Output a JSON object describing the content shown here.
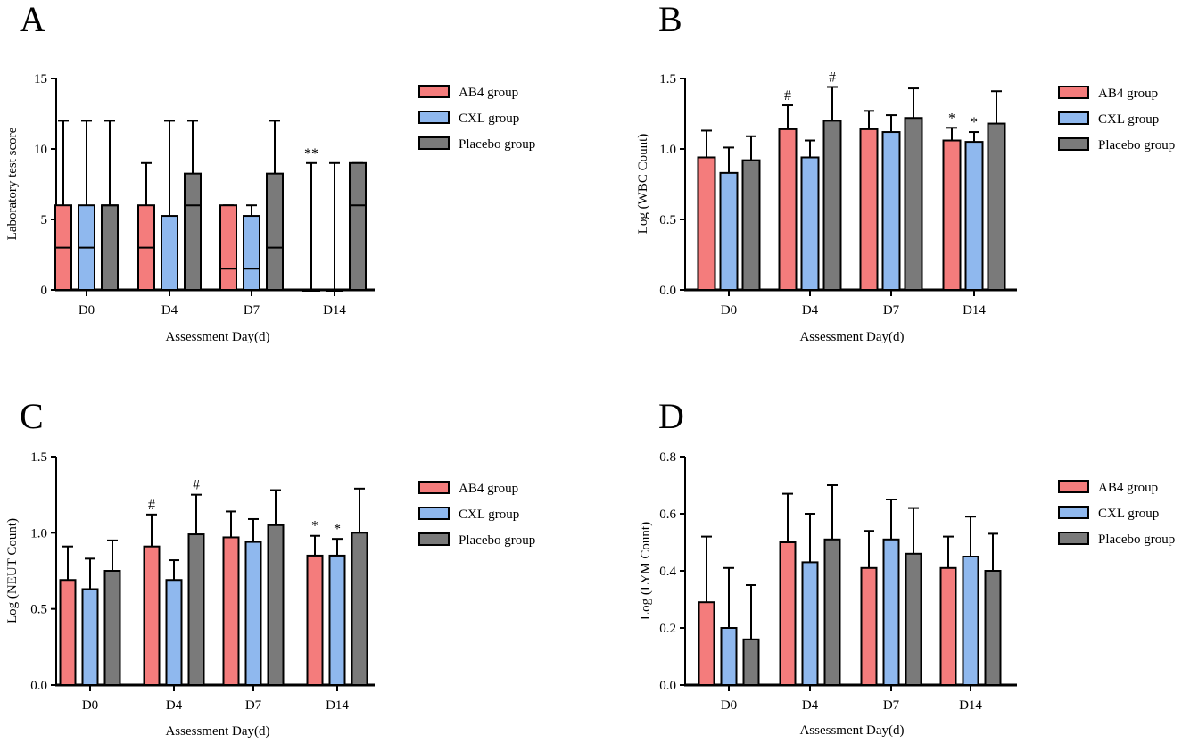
{
  "colors": {
    "AB4 group": "#F47C7C",
    "CXL group": "#8FB8EE",
    "Placebo group": "#7A7A7A"
  },
  "chart_data": [
    {
      "panel": "A",
      "type": "boxplot",
      "xlabel": "Assessment Day(d)",
      "ylabel": "Laboratory test score",
      "ylim": [
        0,
        15
      ],
      "yticks": [
        0,
        5,
        10,
        15
      ],
      "categories": [
        "D0",
        "D4",
        "D7",
        "D14"
      ],
      "legend": [
        "AB4 group",
        "CXL group",
        "Placebo group"
      ],
      "series": [
        {
          "name": "AB4 group",
          "boxes": [
            {
              "min": 0,
              "q1": 0,
              "median": 3,
              "q3": 6,
              "max": 12
            },
            {
              "min": 0,
              "q1": 0,
              "median": 3,
              "q3": 6,
              "max": 9
            },
            {
              "min": 0,
              "q1": 0,
              "median": 1.5,
              "q3": 6,
              "max": 6
            },
            {
              "min": 0,
              "q1": 0,
              "median": 0,
              "q3": 0,
              "max": 9
            }
          ]
        },
        {
          "name": "CXL group",
          "boxes": [
            {
              "min": 0,
              "q1": 0,
              "median": 3,
              "q3": 6,
              "max": 12
            },
            {
              "min": 0,
              "q1": 0,
              "median": 0,
              "q3": 5.25,
              "max": 12
            },
            {
              "min": 0,
              "q1": 0,
              "median": 1.5,
              "q3": 5.25,
              "max": 6
            },
            {
              "min": 0,
              "q1": 0,
              "median": 0,
              "q3": 0,
              "max": 9
            }
          ]
        },
        {
          "name": "Placebo group",
          "boxes": [
            {
              "min": 0,
              "q1": 0,
              "median": 6,
              "q3": 6,
              "max": 12
            },
            {
              "min": 0,
              "q1": 0,
              "median": 6,
              "q3": 8.25,
              "max": 12
            },
            {
              "min": 0,
              "q1": 0,
              "median": 3,
              "q3": 8.25,
              "max": 12
            },
            {
              "min": 0,
              "q1": 0,
              "median": 6,
              "q3": 9,
              "max": 9
            }
          ]
        }
      ],
      "annotations": [
        {
          "series": 0,
          "category": 3,
          "text": "**",
          "value": 9
        }
      ]
    },
    {
      "panel": "B",
      "type": "bar",
      "xlabel": "Assessment Day(d)",
      "ylabel": "Log (WBC Count)",
      "ylim": [
        0,
        1.5
      ],
      "yticks": [
        "0.0",
        "0.5",
        "1.0",
        "1.5"
      ],
      "categories": [
        "D0",
        "D4",
        "D7",
        "D14"
      ],
      "legend": [
        "AB4 group",
        "CXL group",
        "Placebo group"
      ],
      "series": [
        {
          "name": "AB4 group",
          "values": [
            0.94,
            1.14,
            1.14,
            1.06
          ],
          "errors": [
            0.19,
            0.17,
            0.13,
            0.09
          ]
        },
        {
          "name": "CXL group",
          "values": [
            0.83,
            0.94,
            1.12,
            1.05
          ],
          "errors": [
            0.18,
            0.12,
            0.12,
            0.07
          ]
        },
        {
          "name": "Placebo group",
          "values": [
            0.92,
            1.2,
            1.22,
            1.18
          ],
          "errors": [
            0.17,
            0.24,
            0.21,
            0.23
          ]
        }
      ],
      "annotations": [
        {
          "series": 0,
          "category": 1,
          "text": "#"
        },
        {
          "series": 2,
          "category": 1,
          "text": "#"
        },
        {
          "series": 0,
          "category": 3,
          "text": "*"
        },
        {
          "series": 1,
          "category": 3,
          "text": "*"
        }
      ]
    },
    {
      "panel": "C",
      "type": "bar",
      "xlabel": "Assessment Day(d)",
      "ylabel": "Log (NEUT Count)",
      "ylim": [
        0,
        1.5
      ],
      "yticks": [
        "0.0",
        "0.5",
        "1.0",
        "1.5"
      ],
      "categories": [
        "D0",
        "D4",
        "D7",
        "D14"
      ],
      "legend": [
        "AB4 group",
        "CXL group",
        "Placebo group"
      ],
      "series": [
        {
          "name": "AB4 group",
          "values": [
            0.69,
            0.91,
            0.97,
            0.85
          ],
          "errors": [
            0.22,
            0.21,
            0.17,
            0.13
          ]
        },
        {
          "name": "CXL group",
          "values": [
            0.63,
            0.69,
            0.94,
            0.85
          ],
          "errors": [
            0.2,
            0.13,
            0.15,
            0.11
          ]
        },
        {
          "name": "Placebo group",
          "values": [
            0.75,
            0.99,
            1.05,
            1.0
          ],
          "errors": [
            0.2,
            0.26,
            0.23,
            0.29
          ]
        }
      ],
      "annotations": [
        {
          "series": 0,
          "category": 1,
          "text": "#"
        },
        {
          "series": 2,
          "category": 1,
          "text": "#"
        },
        {
          "series": 0,
          "category": 3,
          "text": "*"
        },
        {
          "series": 1,
          "category": 3,
          "text": "*"
        }
      ]
    },
    {
      "panel": "D",
      "type": "bar",
      "xlabel": "Assessment Day(d)",
      "ylabel": "Log (LYM Count)",
      "ylim": [
        0,
        0.8
      ],
      "yticks": [
        "0.0",
        "0.2",
        "0.4",
        "0.6",
        "0.8"
      ],
      "categories": [
        "D0",
        "D4",
        "D7",
        "D14"
      ],
      "legend": [
        "AB4 group",
        "CXL group",
        "Placebo group"
      ],
      "series": [
        {
          "name": "AB4 group",
          "values": [
            0.29,
            0.5,
            0.41,
            0.41
          ],
          "errors": [
            0.23,
            0.17,
            0.13,
            0.11
          ]
        },
        {
          "name": "CXL group",
          "values": [
            0.2,
            0.43,
            0.51,
            0.45
          ],
          "errors": [
            0.21,
            0.17,
            0.14,
            0.14
          ]
        },
        {
          "name": "Placebo group",
          "values": [
            0.16,
            0.51,
            0.46,
            0.4
          ],
          "errors": [
            0.19,
            0.19,
            0.16,
            0.13
          ]
        }
      ],
      "annotations": []
    }
  ]
}
